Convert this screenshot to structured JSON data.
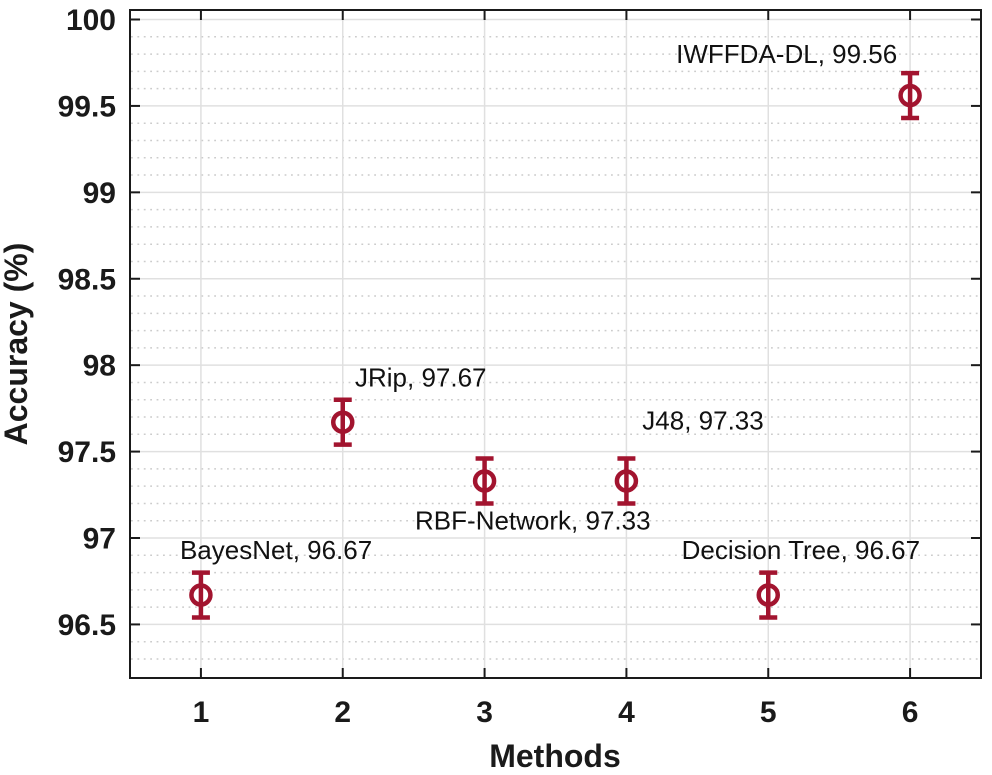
{
  "chart_data": {
    "type": "scatter",
    "title": "",
    "xlabel": "Methods",
    "ylabel": "Accuracy (%)",
    "xlim": [
      0.5,
      6.5
    ],
    "ylim": [
      96.19,
      100.055
    ],
    "x_ticks": [
      {
        "value": 1,
        "label": "1"
      },
      {
        "value": 2,
        "label": "2"
      },
      {
        "value": 3,
        "label": "3"
      },
      {
        "value": 4,
        "label": "4"
      },
      {
        "value": 5,
        "label": "5"
      },
      {
        "value": 6,
        "label": "6"
      }
    ],
    "y_ticks": [
      {
        "value": 96.5,
        "label": "96.5"
      },
      {
        "value": 97,
        "label": "97"
      },
      {
        "value": 97.5,
        "label": "97.5"
      },
      {
        "value": 98,
        "label": "98"
      },
      {
        "value": 98.5,
        "label": "98.5"
      },
      {
        "value": 99,
        "label": "99"
      },
      {
        "value": 99.5,
        "label": "99.5"
      },
      {
        "value": 100,
        "label": "100"
      }
    ],
    "y_minor_step": 0.1,
    "grid": {
      "major": true,
      "minor_horizontal": true,
      "major_color": "#e0e0e0",
      "minor_color": "#cccccc",
      "minor_style": "dotted"
    },
    "axis_color": "#1a1a1a",
    "legend": null,
    "series": [
      {
        "name": "Accuracy (%)",
        "marker": "open-circle",
        "color": "#A2142F",
        "points": [
          {
            "x": 1,
            "y": 96.67,
            "yerr": 0.13,
            "annotation": "BayesNet, 96.67",
            "annotation_x": 1.53,
            "annotation_y": 96.93
          },
          {
            "x": 2,
            "y": 97.67,
            "yerr": 0.13,
            "annotation": "JRip, 97.67",
            "annotation_x": 2.55,
            "annotation_y": 97.93
          },
          {
            "x": 3,
            "y": 97.33,
            "yerr": 0.13,
            "annotation": "RBF-Network, 97.33",
            "annotation_x": 3.34,
            "annotation_y": 97.1
          },
          {
            "x": 4,
            "y": 97.33,
            "yerr": 0.13,
            "annotation": "J48, 97.33",
            "annotation_x": 4.54,
            "annotation_y": 97.68
          },
          {
            "x": 5,
            "y": 96.67,
            "yerr": 0.13,
            "annotation": "Decision Tree, 96.67",
            "annotation_x": 5.23,
            "annotation_y": 96.93
          },
          {
            "x": 6,
            "y": 99.56,
            "yerr": 0.13,
            "annotation": "IWFFDA-DL, 99.56",
            "annotation_x": 5.13,
            "annotation_y": 99.8
          }
        ]
      }
    ]
  }
}
